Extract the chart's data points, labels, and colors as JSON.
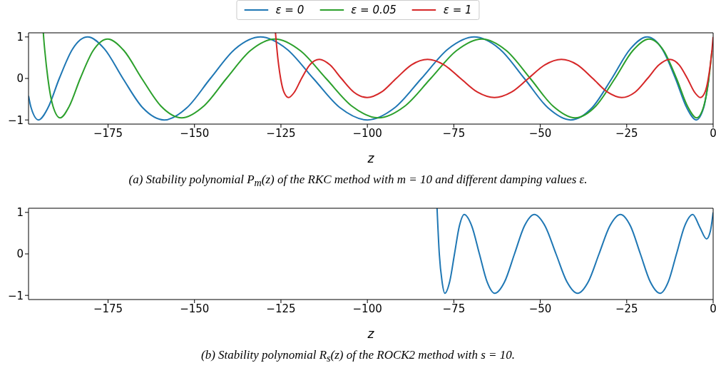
{
  "chart_data": [
    {
      "type": "line",
      "xlabel": "z",
      "xlim": [
        -198,
        0
      ],
      "xticks": [
        -175,
        -150,
        -125,
        -100,
        -75,
        -50,
        -25,
        0
      ],
      "ylim": [
        -1.1,
        1.1
      ],
      "yticks": [
        -1,
        0,
        1
      ],
      "legend": "top",
      "annotations": [
        "(a) Stability polynomial P$_{m}$(z) of the RKC method with m = 10 and different damping values ε."
      ],
      "series": [
        {
          "name": "ε = 0",
          "color": "#1f77b4",
          "x": [
            -198,
            -197.24,
            -195.11,
            -192.39,
            -189.1,
            -185.26,
            -180.9,
            -176.04,
            -170.71,
            -164.94,
            -158.78,
            -152.25,
            -145.4,
            -138.27,
            -130.9,
            -123.34,
            -115.64,
            -107.85,
            -100,
            -92.15,
            -84.36,
            -76.66,
            -69.1,
            -61.73,
            -54.6,
            -47.75,
            -41.22,
            -35.06,
            -29.29,
            -23.96,
            -19.1,
            -14.74,
            -10.9,
            -7.61,
            -4.89,
            -2.76,
            -1.23
          ],
          "values": [
            -0.42,
            -0.71,
            -1,
            -0.71,
            0,
            0.71,
            1,
            0.71,
            0,
            -0.71,
            -1,
            -0.71,
            0,
            0.71,
            1,
            0.71,
            0,
            -0.71,
            -1,
            -0.71,
            0,
            0.71,
            1,
            0.71,
            0,
            -0.71,
            -1,
            -0.71,
            0,
            0.71,
            1,
            0.71,
            0,
            -0.71,
            -1,
            -0.71,
            0
          ]
        },
        {
          "name": "ε = 0.05",
          "color": "#2ca02c",
          "x": [
            -193.72,
            -193.59,
            -193.29,
            -192.4,
            -190.92,
            -188.86,
            -186.22,
            -183.04,
            -179.32,
            -175.11,
            -170.4,
            -165.25,
            -159.66,
            -153.7,
            -147.38,
            -140.75,
            -133.85,
            -126.72,
            -119.4,
            -111.96,
            -104.42,
            -96.82,
            -89.22,
            -81.68,
            -74.23,
            -66.92,
            -59.79,
            -52.89,
            -46.26,
            -39.94,
            -33.98,
            -28.39,
            -23.24,
            -18.53,
            -14.31,
            -10.6,
            -7.41,
            -4.78,
            -2.72,
            -1.24,
            -0.35
          ],
          "values": [
            1.1,
            0.95,
            0.67,
            0,
            -0.67,
            -0.95,
            -0.67,
            0,
            0.67,
            0.95,
            0.67,
            0,
            -0.67,
            -0.95,
            -0.67,
            0,
            0.67,
            0.95,
            0.67,
            0,
            -0.67,
            -0.95,
            -0.67,
            0,
            0.67,
            0.95,
            0.67,
            0,
            -0.67,
            -0.95,
            -0.67,
            0,
            0.67,
            0.95,
            0.67,
            0,
            -0.67,
            -0.95,
            -0.67,
            0,
            0.67
          ]
        },
        {
          "name": "ε = 1",
          "color": "#d62728",
          "x": [
            -126.58,
            -125.86,
            -125.67,
            -125.09,
            -124.13,
            -122.8,
            -121.1,
            -119.04,
            -116.63,
            -113.9,
            -110.86,
            -107.52,
            -103.91,
            -100.05,
            -95.96,
            -91.67,
            -87.21,
            -82.59,
            -77.86,
            -73.04,
            -68.16,
            -63.24,
            -58.33,
            -53.45,
            -48.63,
            -43.89,
            -39.28,
            -34.81,
            -30.53,
            -26.44,
            -22.58,
            -18.97,
            -15.63,
            -12.59,
            -9.86,
            -7.45,
            -5.39,
            -3.69,
            -2.35,
            -1.4,
            -0.82,
            -0.63,
            -0.3,
            0
          ],
          "values": [
            1.1,
            0.46,
            0.33,
            0,
            -0.33,
            -0.46,
            -0.33,
            0,
            0.33,
            0.46,
            0.33,
            0,
            -0.33,
            -0.46,
            -0.33,
            0,
            0.33,
            0.46,
            0.33,
            0,
            -0.33,
            -0.46,
            -0.33,
            0,
            0.33,
            0.46,
            0.33,
            0,
            -0.33,
            -0.46,
            -0.33,
            0,
            0.33,
            0.46,
            0.33,
            0,
            -0.33,
            -0.46,
            -0.33,
            0,
            0.33,
            0.46,
            0.72,
            1
          ]
        }
      ]
    },
    {
      "type": "line",
      "xlabel": "z",
      "xlim": [
        -198,
        0
      ],
      "xticks": [
        -175,
        -150,
        -125,
        -100,
        -75,
        -50,
        -25,
        0
      ],
      "ylim": [
        -1.1,
        1.1
      ],
      "yticks": [
        -1,
        0,
        1
      ],
      "annotations": [
        "(b) Stability polynomial R$_{s}$(z) of the ROCK2 method with s = 10."
      ],
      "series": [
        {
          "color": "#1f77b4",
          "x": [
            -79.85,
            -79.2,
            -78.4,
            -77.6,
            -76.2,
            -74.8,
            -73.4,
            -72.0,
            -69.8,
            -67.6,
            -65.4,
            -63.2,
            -60.3,
            -57.45,
            -54.6,
            -51.7,
            -48.6,
            -45.45,
            -42.3,
            -39.2,
            -36.1,
            -33.0,
            -29.9,
            -26.8,
            -23.9,
            -21.05,
            -18.2,
            -15.3,
            -12.95,
            -10.6,
            -8.25,
            -5.9,
            -3.9,
            -1.9,
            -0.8,
            0
          ],
          "values": [
            1.1,
            0,
            -0.67,
            -0.95,
            -0.67,
            0,
            0.67,
            0.95,
            0.67,
            0,
            -0.67,
            -0.95,
            -0.67,
            0,
            0.67,
            0.95,
            0.67,
            0,
            -0.67,
            -0.95,
            -0.67,
            0,
            0.67,
            0.95,
            0.67,
            0,
            -0.67,
            -0.95,
            -0.67,
            0,
            0.67,
            0.95,
            0.65,
            0.36,
            0.55,
            1
          ]
        }
      ]
    }
  ]
}
